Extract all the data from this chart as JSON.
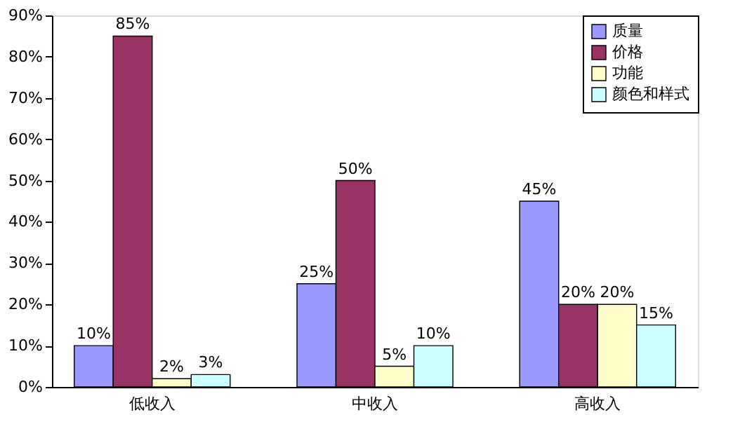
{
  "chart_data": {
    "type": "bar",
    "categories": [
      "低收入",
      "中收入",
      "高收入"
    ],
    "series": [
      {
        "name": "质量",
        "color": "#9999ff",
        "values": [
          10,
          25,
          45
        ],
        "value_labels": [
          "10%",
          "25%",
          "45%"
        ]
      },
      {
        "name": "价格",
        "color": "#993366",
        "values": [
          85,
          50,
          20
        ],
        "value_labels": [
          "85%",
          "50%",
          "20%"
        ]
      },
      {
        "name": "功能",
        "color": "#ffffcc",
        "values": [
          2,
          5,
          20
        ],
        "value_labels": [
          "2%",
          "5%",
          "20%"
        ]
      },
      {
        "name": "颜色和样式",
        "color": "#ccffff",
        "values": [
          3,
          10,
          15
        ],
        "value_labels": [
          "3%",
          "10%",
          "15%"
        ]
      }
    ],
    "ylim": [
      0,
      90
    ],
    "yticks": [
      {
        "value": 0,
        "label": "0%"
      },
      {
        "value": 10,
        "label": "10%"
      },
      {
        "value": 20,
        "label": "20%"
      },
      {
        "value": 30,
        "label": "30%"
      },
      {
        "value": 40,
        "label": "40%"
      },
      {
        "value": 50,
        "label": "50%"
      },
      {
        "value": 60,
        "label": "60%"
      },
      {
        "value": 70,
        "label": "70%"
      },
      {
        "value": 80,
        "label": "80%"
      },
      {
        "value": 90,
        "label": "90%"
      }
    ],
    "grid": false,
    "legend": "top right"
  }
}
